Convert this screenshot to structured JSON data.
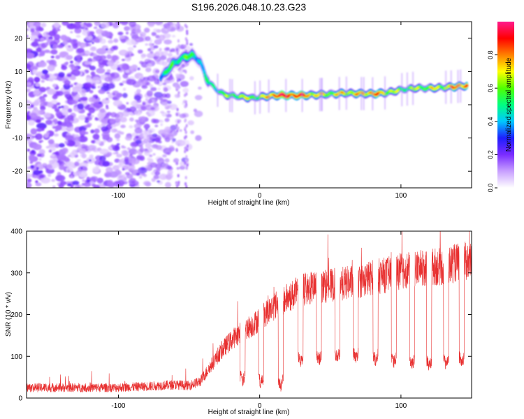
{
  "title": "S196.2026.048.10.23.G23",
  "chart_data": [
    {
      "type": "heatmap",
      "xlabel": "Height of straight line (km)",
      "ylabel": "Frequency (Hz)",
      "xlim": [
        -165,
        150
      ],
      "ylim": [
        -25,
        25
      ],
      "xticks": [
        -100,
        0,
        100
      ],
      "yticks": [
        -20,
        -10,
        0,
        10,
        20
      ],
      "colorbar": {
        "label": "Normalized spectral amplitude",
        "range": [
          0.0,
          1.0
        ],
        "ticks": [
          0.0,
          0.2,
          0.4,
          0.6,
          0.8
        ],
        "stops": [
          "#ffffff",
          "#c8a0ff",
          "#7a2cff",
          "#1e1eff",
          "#00c8ff",
          "#00ff80",
          "#50ff00",
          "#ffff00",
          "#ff8000",
          "#ff0000",
          "#ff1a8c"
        ]
      },
      "ridge": {
        "x": [
          -70,
          -62,
          -55,
          -48,
          -42,
          -38,
          -32,
          -25,
          -15,
          -5,
          0,
          10,
          20,
          30,
          40,
          50,
          60,
          70,
          80,
          90,
          100,
          110,
          120,
          130,
          140,
          147
        ],
        "freq": [
          8,
          12,
          14,
          15,
          13,
          8,
          5,
          3,
          2.5,
          2,
          2.3,
          2.8,
          2.8,
          2.8,
          3,
          3.2,
          3.5,
          3.4,
          3.3,
          3.6,
          4.5,
          5,
          5,
          5.2,
          5.5,
          5.8
        ],
        "amplitude": [
          0.45,
          0.5,
          0.55,
          0.5,
          0.45,
          0.4,
          0.5,
          0.55,
          0.6,
          0.65,
          0.55,
          0.85,
          0.9,
          0.85,
          0.7,
          0.65,
          0.7,
          0.7,
          0.8,
          0.7,
          0.55,
          0.6,
          0.65,
          0.65,
          0.8,
          0.85
        ]
      }
    },
    {
      "type": "line",
      "xlabel": "Height of straight line (km)",
      "ylabel": "SNR (10 * v/v)",
      "xlim": [
        -165,
        150
      ],
      "ylim": [
        0,
        400
      ],
      "xticks": [
        -100,
        0,
        100
      ],
      "yticks": [
        0,
        100,
        200,
        300,
        400
      ],
      "series": [
        {
          "name": "SNR",
          "color": "#e83030",
          "x": [
            -165,
            -130,
            -100,
            -80,
            -60,
            -50,
            -42,
            -36,
            -30,
            -24,
            -18,
            -10,
            -5,
            0,
            5,
            10,
            15,
            20,
            25,
            30,
            40,
            50,
            60,
            70,
            80,
            90,
            100,
            110,
            120,
            130,
            140,
            150
          ],
          "y": [
            25,
            25,
            25,
            28,
            32,
            30,
            40,
            70,
            100,
            125,
            145,
            165,
            175,
            190,
            205,
            220,
            230,
            240,
            250,
            260,
            265,
            270,
            275,
            280,
            290,
            295,
            305,
            310,
            315,
            315,
            325,
            330
          ],
          "dips_x": [
            -12,
            1,
            15,
            29,
            42,
            55,
            68,
            82,
            95,
            108,
            120,
            132,
            143
          ],
          "dips_y": [
            40,
            35,
            30,
            85,
            90,
            95,
            95,
            90,
            85,
            80,
            75,
            80,
            85
          ]
        }
      ]
    }
  ]
}
